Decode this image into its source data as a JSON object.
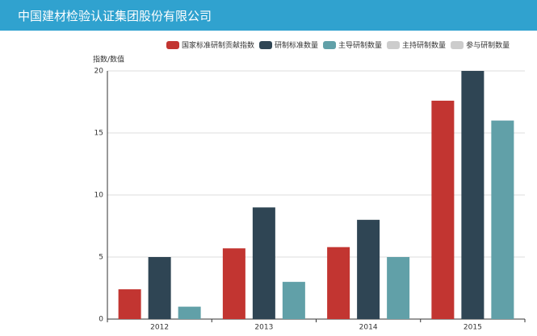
{
  "header": {
    "title": "中国建材检验认证集团股份有限公司"
  },
  "chart_data": {
    "type": "bar",
    "ylabel": "指数/数值",
    "categories": [
      "2012",
      "2013",
      "2014",
      "2015"
    ],
    "series": [
      {
        "name": "国家标准研制贡献指数",
        "color": "#c23531",
        "values": [
          2.4,
          5.7,
          5.8,
          17.6
        ]
      },
      {
        "name": "研制标准数量",
        "color": "#2f4554",
        "values": [
          5,
          9,
          8,
          20
        ]
      },
      {
        "name": "主导研制数量",
        "color": "#61a0a8",
        "values": [
          1,
          3,
          5,
          16
        ]
      },
      {
        "name": "主持研制数量",
        "color": "#cccccc",
        "visible": false
      },
      {
        "name": "参与研制数量",
        "color": "#cccccc",
        "visible": false
      }
    ],
    "ylim": [
      0,
      20
    ],
    "yticks": [
      0,
      5,
      10,
      15,
      20
    ],
    "grid": true,
    "legend": "top"
  }
}
